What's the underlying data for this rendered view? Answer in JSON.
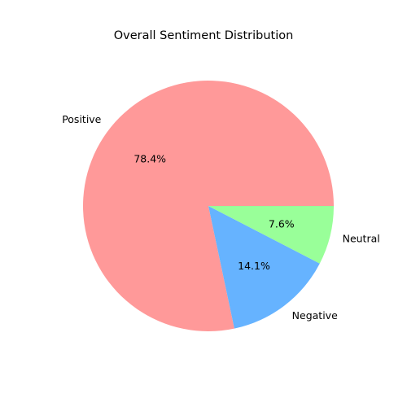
{
  "chart_data": {
    "type": "pie",
    "title": "Overall Sentiment Distribution",
    "categories": [
      "Positive",
      "Negative",
      "Neutral"
    ],
    "values": [
      78.4,
      14.1,
      7.6
    ],
    "percent_labels": [
      "78.4%",
      "14.1%",
      "7.6%"
    ],
    "colors": [
      "#ff9999",
      "#66b3ff",
      "#99ff99"
    ],
    "start_angle_deg": 0,
    "direction": "counterclockwise",
    "legend": "none"
  }
}
